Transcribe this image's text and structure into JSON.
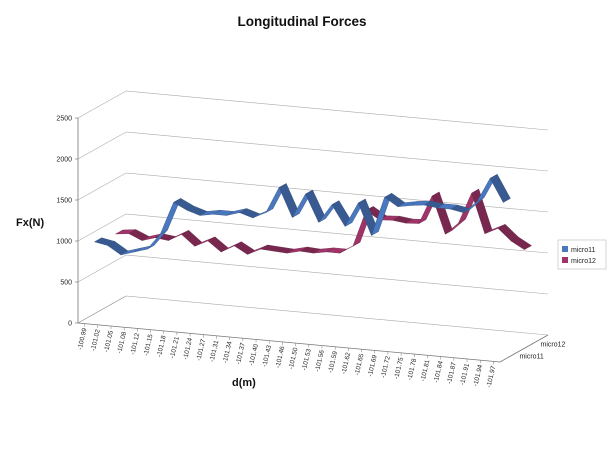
{
  "chart_data": {
    "type": "line",
    "style": "3d-ribbon",
    "title": "Longitudinal Forces",
    "xlabel": "d(m)",
    "ylabel": "Fx(N)",
    "ylim": [
      0,
      2500
    ],
    "yticks": [
      "0",
      "500",
      "1000",
      "1500",
      "2000",
      "2500"
    ],
    "grid": true,
    "legend_position": "right",
    "categories": [
      "-100.99",
      "-101.02",
      "-101.05",
      "-101.08",
      "-101.12",
      "-101.15",
      "-101.18",
      "-101.21",
      "-101.24",
      "-101.27",
      "-101.31",
      "-101.34",
      "-101.37",
      "-101.40",
      "-101.43",
      "-101.46",
      "-101.50",
      "-101.53",
      "-101.56",
      "-101.59",
      "-101.62",
      "-101.65",
      "-101.69",
      "-101.72",
      "-101.75",
      "-101.78",
      "-101.81",
      "-101.84",
      "-101.87",
      "-101.91",
      "-101.94",
      "-101.97"
    ],
    "depth_labels": [
      "micro12",
      "micro11"
    ],
    "series": [
      {
        "name": "micro11",
        "color": "#4a78c0",
        "values": [
          930,
          900,
          800,
          850,
          900,
          1100,
          1500,
          1420,
          1370,
          1400,
          1400,
          1450,
          1400,
          1480,
          1800,
          1450,
          1750,
          1420,
          1650,
          1400,
          1700,
          1320,
          1800,
          1700,
          1730,
          1750,
          1730,
          1730,
          1700,
          1850,
          2150,
          1870
        ]
      },
      {
        "name": "micro12",
        "color": "#a03468",
        "values": [
          880,
          900,
          830,
          880,
          860,
          950,
          820,
          900,
          780,
          870,
          780,
          860,
          850,
          840,
          880,
          870,
          900,
          900,
          1000,
          1450,
          1350,
          1360,
          1340,
          1350,
          1700,
          1250,
          1400,
          1780,
          1300,
          1380,
          1240,
          1150
        ]
      }
    ]
  }
}
